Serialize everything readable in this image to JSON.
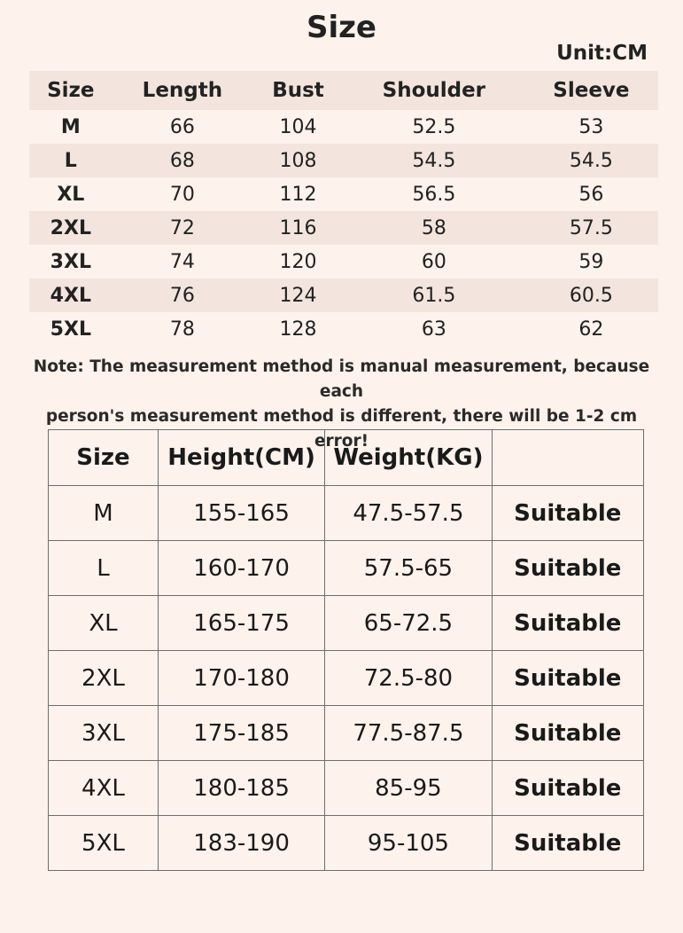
{
  "title": "Size",
  "unit": "Unit:CM",
  "table1": {
    "headers": [
      "Size",
      "Length",
      "Bust",
      "Shoulder",
      "Sleeve"
    ],
    "rows": [
      [
        "M",
        "66",
        "104",
        "52.5",
        "53"
      ],
      [
        "L",
        "68",
        "108",
        "54.5",
        "54.5"
      ],
      [
        "XL",
        "70",
        "112",
        "56.5",
        "56"
      ],
      [
        "2XL",
        "72",
        "116",
        "58",
        "57.5"
      ],
      [
        "3XL",
        "74",
        "120",
        "60",
        "59"
      ],
      [
        "4XL",
        "76",
        "124",
        "61.5",
        "60.5"
      ],
      [
        "5XL",
        "78",
        "128",
        "63",
        "62"
      ]
    ]
  },
  "note": {
    "line1": "Note: The measurement method is manual measurement, because each",
    "line2": "person's measurement method is different, there will be 1-2 cm error!"
  },
  "table2": {
    "headers": [
      "Size",
      "Height(CM)",
      "Weight(KG)",
      ""
    ],
    "rows": [
      [
        "M",
        "155-165",
        "47.5-57.5",
        "Suitable"
      ],
      [
        "L",
        "160-170",
        "57.5-65",
        "Suitable"
      ],
      [
        "XL",
        "165-175",
        "65-72.5",
        "Suitable"
      ],
      [
        "2XL",
        "170-180",
        "72.5-80",
        "Suitable"
      ],
      [
        "3XL",
        "175-185",
        "77.5-87.5",
        "Suitable"
      ],
      [
        "4XL",
        "180-185",
        "85-95",
        "Suitable"
      ],
      [
        "5XL",
        "183-190",
        "95-105",
        "Suitable"
      ]
    ]
  }
}
